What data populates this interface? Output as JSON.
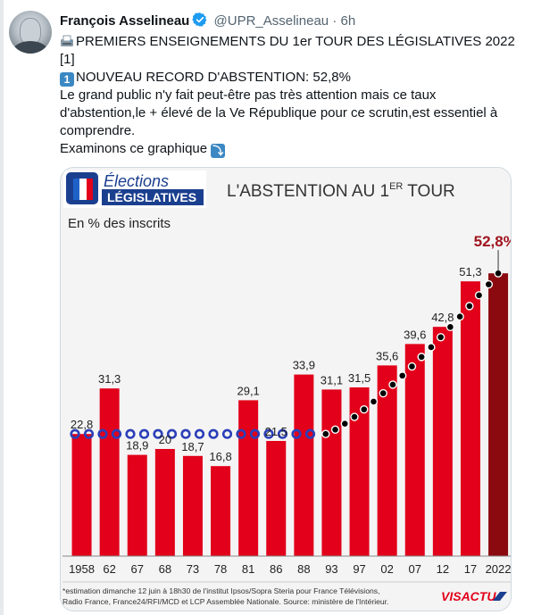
{
  "tweet": {
    "author_name": "François Asselineau",
    "handle": "@UPR_Asselineau",
    "separator": "·",
    "time": "6h",
    "lines": [
      "PREMIERS ENSEIGNEMENTS DU 1er TOUR DES LÉGISLATIVES 2022",
      "[1]",
      "NOUVEAU RECORD D'ABSTENTION: 52,8%",
      "Le grand public n'y fait peut-être pas très attention mais ce taux d'abstention,le + élevé de la Ve République pour ce scrutin,est essentiel à comprendre.",
      "Examinons ce graphique"
    ],
    "keycap_one": "1",
    "arrow_emoji": "⤵"
  },
  "chart_data": {
    "type": "bar",
    "logo_line1": "Élections",
    "logo_line2": "LÉGISLATIVES",
    "title": "L'ABSTENTION AU 1",
    "title_sup": "ER",
    "title_end": " TOUR",
    "subtitle": "En % des inscrits",
    "categories": [
      "1958",
      "62",
      "67",
      "68",
      "73",
      "78",
      "81",
      "86",
      "88",
      "93",
      "97",
      "02",
      "07",
      "12",
      "17",
      "2022"
    ],
    "values": [
      22.8,
      31.3,
      18.9,
      20,
      18.7,
      16.8,
      29.1,
      21.5,
      33.9,
      31.1,
      31.5,
      35.6,
      39.6,
      42.8,
      51.3,
      52.8
    ],
    "labels": [
      "22,8",
      "31,3",
      "18,9",
      "20",
      "18,7",
      "16,8",
      "29,1",
      "21,5",
      "33,9",
      "31,1",
      "31,5",
      "35,6",
      "39,6",
      "42,8",
      "51,3",
      "52,8%*"
    ],
    "ylim": [
      0,
      60
    ],
    "grid": false,
    "colors": {
      "bar": "#e2001a",
      "highlight": "#8b0a0f",
      "stable_dots": "#2b3fb8",
      "trend_dots": "#1b1b1b",
      "highlight_label": "#a0141e"
    },
    "footnote_line1": "*estimation dimanche 12 juin à 18h30 de l'institut Ipsos/Sopra Steria pour France Télévisions,",
    "footnote_line2": "Radio France, France24/RFI/MCD et LCP Assemblée Nationale.  Source: ministère de l'Intérieur.",
    "brand": "VISACTU"
  }
}
